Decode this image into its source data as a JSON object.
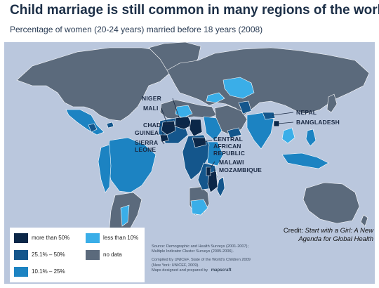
{
  "title": "Child marriage is still common in many regions of the world",
  "subtitle": "Percentage of women (20-24 years) married before 18 years (2008)",
  "colors": {
    "ocean": "#bac7dd",
    "no_data": "#5b6a7c",
    "more_than_50": "#0b2748",
    "p25_50": "#14568c",
    "p10_25": "#1c83c2",
    "less_than_10": "#3aaee8",
    "label_text": "#1b2a44"
  },
  "legend": [
    {
      "label": "more than 50%",
      "color_key": "more_than_50"
    },
    {
      "label": "25.1% – 50%",
      "color_key": "p25_50"
    },
    {
      "label": "10.1% – 25%",
      "color_key": "p10_25"
    },
    {
      "label": "less than 10%",
      "color_key": "less_than_10"
    },
    {
      "label": "no data",
      "color_key": "no_data"
    }
  ],
  "country_labels": {
    "niger": "NIGER",
    "mali": "MALI",
    "chad": "CHAD",
    "guinea": "GUINEA",
    "sierra_leone_1": "SIERRA",
    "sierra_leone_2": "LEONE",
    "car_1": "CENTRAL",
    "car_2": "AFRICAN",
    "car_3": "REPUBLIC",
    "malawi": "MALAWI",
    "mozambique": "MOZAMBIQUE",
    "nepal": "NEPAL",
    "bangladesh": "BANGLADESH"
  },
  "source": {
    "line1": "Source: Demographic and Health Surveys (2001-2007);",
    "line2": "Multiple Indicator Cluster Surveys (2005-2006).",
    "line3": "Compiled by UNICEF, State of the World's Children 2009",
    "line4": "(New York: UNICEF, 2009).",
    "line5": "Maps designed and prepared by",
    "logo_text": "mapscraft"
  },
  "credit": {
    "prefix": "Credit: ",
    "work_line1": "Start with a Girl: A New",
    "work_line2": "Agenda for Global Health"
  }
}
